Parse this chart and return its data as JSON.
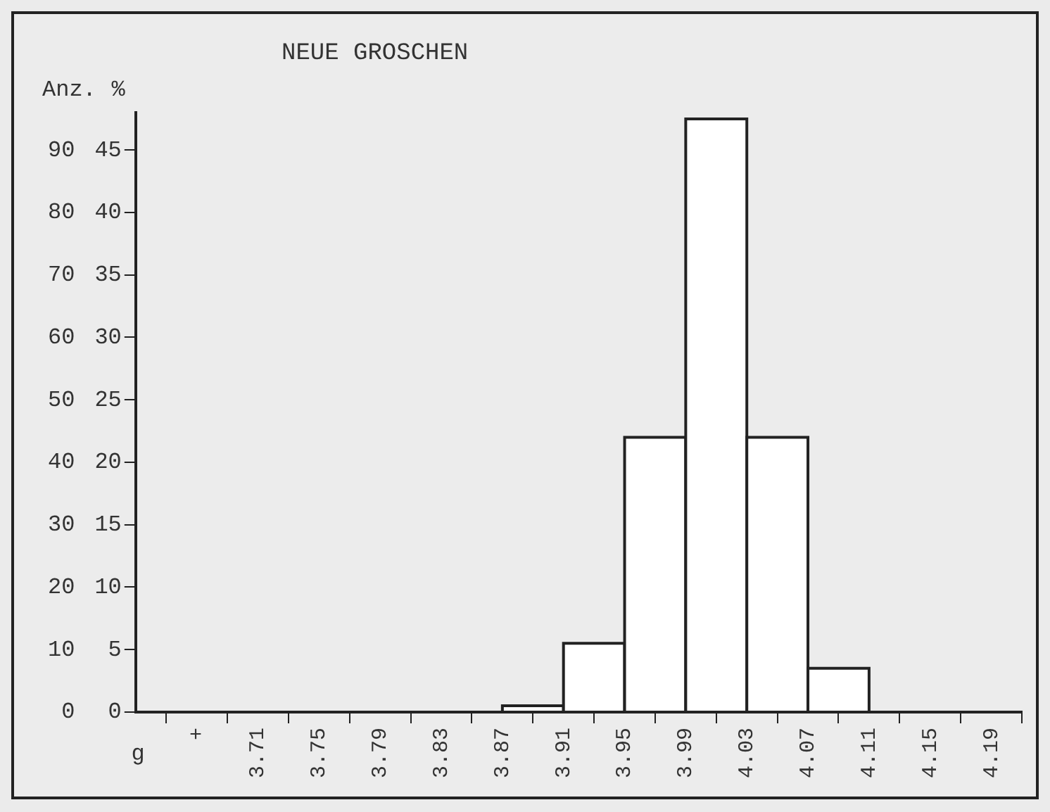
{
  "chart_data": {
    "type": "histogram",
    "title": "NEUE GROSCHEN",
    "xlabel": "g",
    "ylabel": "Anz.",
    "y2label": "%",
    "bins": [
      3.87,
      3.91,
      3.95,
      3.99,
      4.03,
      4.07,
      4.11
    ],
    "values": [
      1,
      11,
      44,
      95,
      44,
      7
    ],
    "color": "#ffffff",
    "xlim": [
      3.63,
      4.21
    ],
    "xticks": [
      {
        "value": 3.67,
        "label": "+"
      },
      3.71,
      3.75,
      3.79,
      3.83,
      3.87,
      3.91,
      3.95,
      3.99,
      4.03,
      4.07,
      4.11,
      4.15,
      4.19
    ],
    "ylim": [
      0,
      96
    ],
    "yticks": [
      0,
      10,
      20,
      30,
      40,
      50,
      60,
      70,
      80,
      90
    ],
    "y2lim": [
      0,
      48
    ],
    "y2ticks": [
      0,
      5,
      10,
      15,
      20,
      25,
      30,
      35,
      40,
      45
    ],
    "grid": false,
    "legend": false
  }
}
